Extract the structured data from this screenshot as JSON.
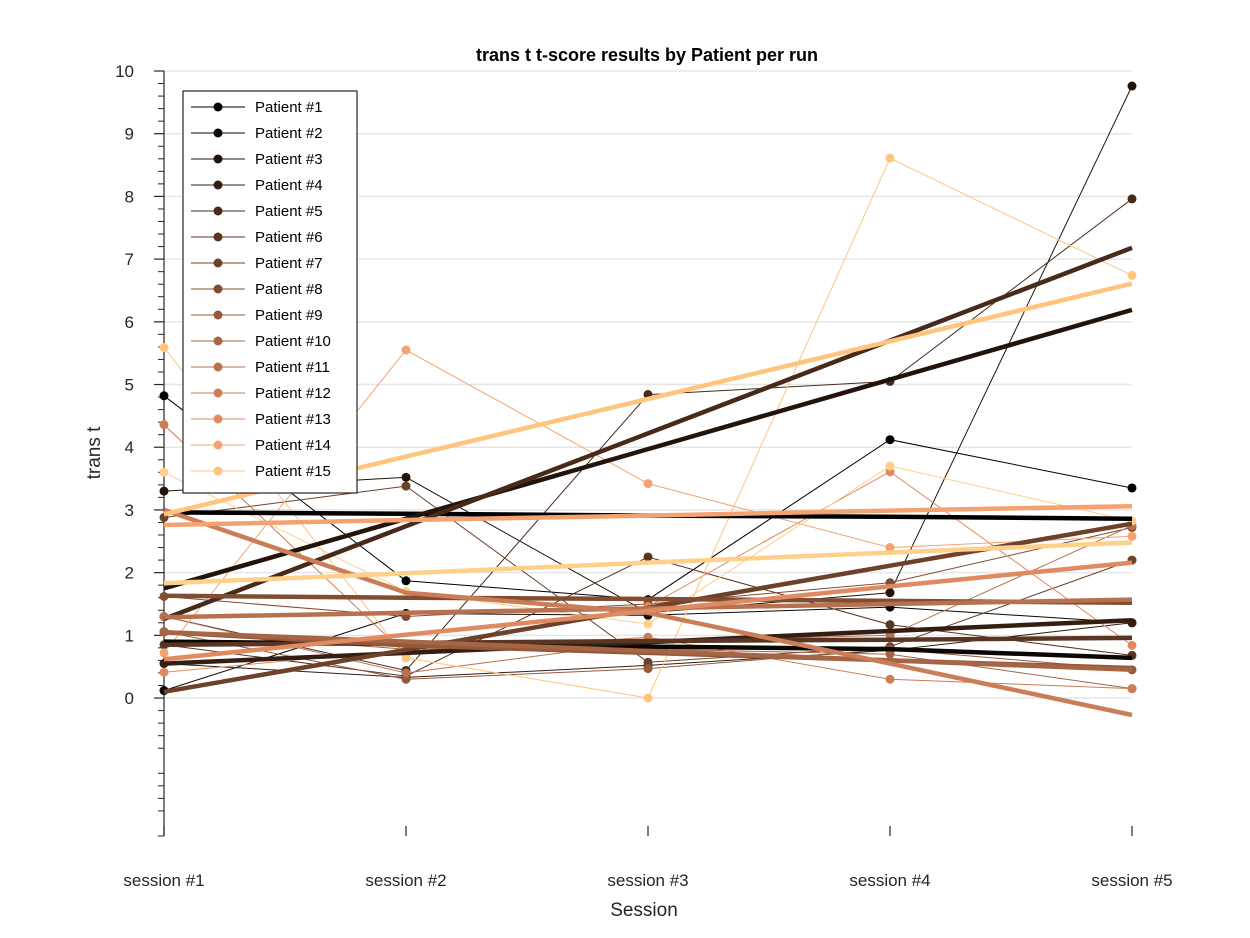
{
  "chart_data": {
    "type": "line",
    "title": "trans t  t-score results by Patient per run",
    "xlabel": "Session",
    "ylabel": "trans t",
    "categories": [
      "session #1",
      "session #2",
      "session #3",
      "session #4",
      "session #5"
    ],
    "ylim": [
      -2.2,
      10
    ],
    "yticks": [
      0,
      1,
      2,
      3,
      4,
      5,
      6,
      7,
      8,
      9,
      10
    ],
    "grid": "horizontal",
    "legend_position": "top-left",
    "series": [
      {
        "name": "Patient #1",
        "color": "#000000",
        "values": [
          4.82,
          1.87,
          1.57,
          4.12,
          3.35
        ],
        "trend": [
          2.96,
          2.94,
          2.91,
          2.89,
          2.86
        ]
      },
      {
        "name": "Patient #2",
        "color": "#0d0704",
        "values": [
          0.12,
          1.35,
          1.32,
          1.45,
          1.2
        ],
        "trend": [
          0.9,
          0.86,
          0.82,
          0.78,
          0.64
        ]
      },
      {
        "name": "Patient #3",
        "color": "#22130b",
        "values": [
          3.3,
          3.52,
          1.36,
          1.68,
          9.76
        ],
        "trend": [
          1.75,
          2.86,
          3.97,
          5.08,
          6.19
        ]
      },
      {
        "name": "Patient #4",
        "color": "#341e12",
        "values": [
          0.55,
          0.33,
          0.52,
          0.76,
          1.2
        ],
        "trend": [
          0.55,
          0.72,
          0.89,
          1.07,
          1.24
        ]
      },
      {
        "name": "Patient #5",
        "color": "#472a1a",
        "values": [
          1.3,
          0.44,
          4.84,
          5.05,
          7.96
        ],
        "trend": [
          1.26,
          2.74,
          4.22,
          5.7,
          7.18
        ]
      },
      {
        "name": "Patient #6",
        "color": "#5a3522",
        "values": [
          0.85,
          0.35,
          2.25,
          1.17,
          0.68
        ],
        "trend": [
          0.85,
          0.88,
          0.91,
          0.93,
          0.96
        ]
      },
      {
        "name": "Patient #7",
        "color": "#6d412a",
        "values": [
          2.88,
          3.38,
          0.57,
          0.82,
          2.2
        ],
        "trend": [
          0.1,
          0.77,
          1.44,
          2.11,
          2.78
        ]
      },
      {
        "name": "Patient #8",
        "color": "#814d32",
        "values": [
          1.62,
          1.3,
          1.5,
          1.84,
          2.72
        ],
        "trend": [
          1.63,
          1.6,
          1.58,
          1.55,
          1.52
        ]
      },
      {
        "name": "Patient #9",
        "color": "#94593b",
        "values": [
          1.06,
          0.3,
          0.47,
          0.78,
          0.45
        ],
        "trend": [
          1.05,
          0.84,
          0.72,
          0.6,
          0.48
        ]
      },
      {
        "name": "Patient #10",
        "color": "#a66545",
        "values": [
          1.05,
          0.78,
          0.78,
          0.7,
          0.15
        ],
        "trend": [
          1.05,
          0.9,
          0.75,
          0.6,
          0.45
        ]
      },
      {
        "name": "Patient #11",
        "color": "#b8714e",
        "values": [
          1.3,
          0.4,
          0.9,
          1.0,
          2.75
        ],
        "trend": [
          1.29,
          1.36,
          1.43,
          1.5,
          1.57
        ]
      },
      {
        "name": "Patient #12",
        "color": "#cb7d57",
        "values": [
          4.36,
          0.7,
          0.97,
          0.3,
          0.15
        ],
        "trend": [
          3.0,
          1.68,
          1.36,
          0.55,
          -0.27
        ]
      },
      {
        "name": "Patient #13",
        "color": "#e08a61",
        "values": [
          0.41,
          0.77,
          1.46,
          3.61,
          0.84
        ],
        "trend": [
          0.62,
          1.01,
          1.39,
          1.78,
          2.16
        ]
      },
      {
        "name": "Patient #14",
        "color": "#f3a272",
        "values": [
          0.72,
          5.55,
          3.42,
          2.4,
          2.58
        ],
        "trend": [
          2.76,
          2.84,
          2.91,
          2.99,
          3.06
        ]
      },
      {
        "name": "Patient #15",
        "color": "#ffc47e",
        "values": [
          5.59,
          0.64,
          0.0,
          8.61,
          6.74
        ],
        "trend": [
          2.93,
          3.85,
          4.77,
          5.69,
          6.61
        ]
      },
      {
        "name": "",
        "color": "#ffd08a",
        "values": [
          3.6,
          1.7,
          1.18,
          3.7,
          2.82
        ],
        "trend": [
          1.83,
          1.99,
          2.16,
          2.32,
          2.48
        ]
      }
    ]
  }
}
